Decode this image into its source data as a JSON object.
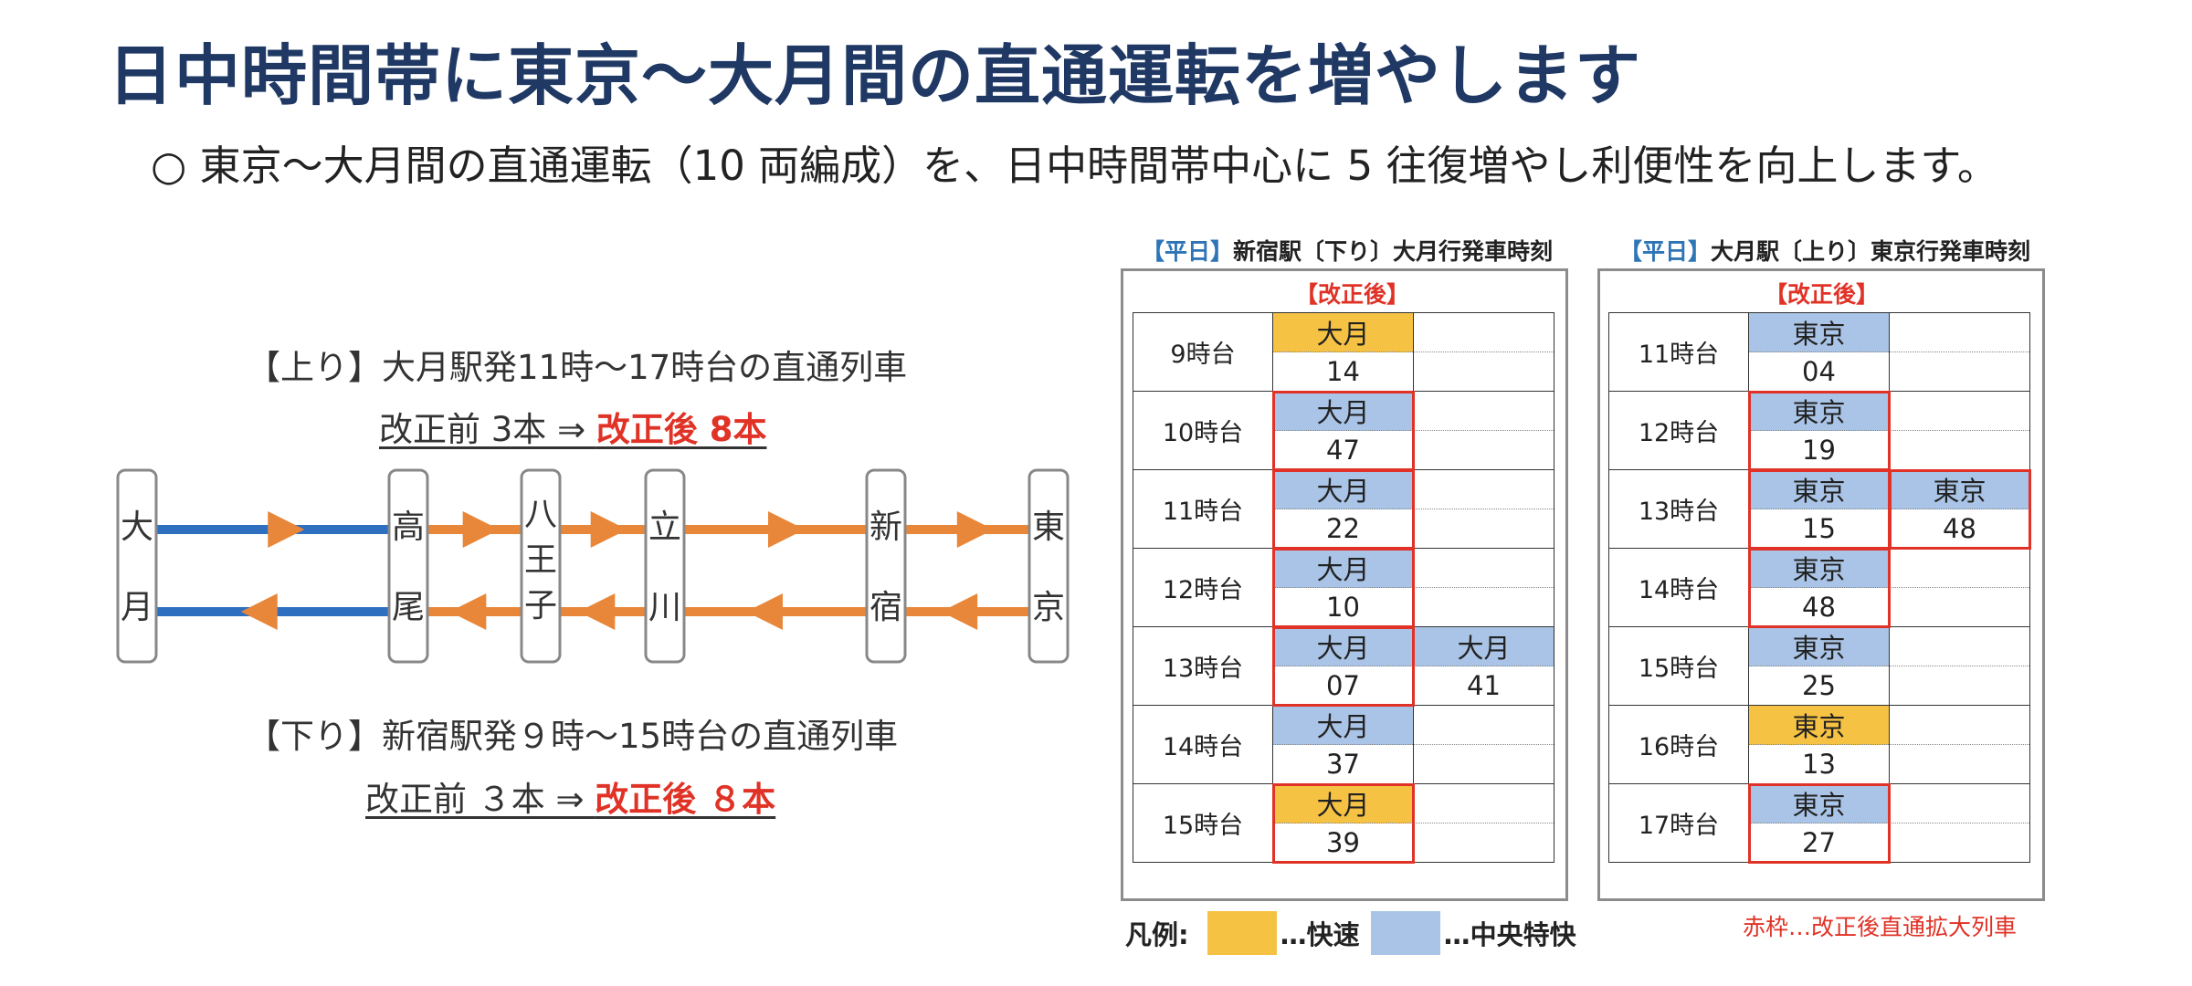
{
  "title": "日中時間帯に東京～大月間の直通運転を増やします",
  "subtitle": "○ 東京～大月間の直通運転（10 両編成）を、日中時間帯中心に 5 往復増やし利便性を向上します。",
  "up": {
    "caption": "【上り】大月駅発11時～17時台の直通列車",
    "before": "改正前 3本 ⇒ ",
    "after": "改正後 8本"
  },
  "down": {
    "caption": "【下り】新宿駅発９時～15時台の直通列車",
    "before": "改正前 ３本 ⇒ ",
    "after": "改正後 ８本"
  },
  "stations": [
    {
      "id": "otsuki",
      "chars": [
        "大",
        "月"
      ]
    },
    {
      "id": "takao",
      "chars": [
        "高",
        "尾"
      ]
    },
    {
      "id": "hachioji",
      "chars": [
        "八",
        "王",
        "子"
      ]
    },
    {
      "id": "tachikawa",
      "chars": [
        "立",
        "川"
      ]
    },
    {
      "id": "shinjuku",
      "chars": [
        "新",
        "宿"
      ]
    },
    {
      "id": "tokyo",
      "chars": [
        "東",
        "京"
      ]
    }
  ],
  "colors": {
    "title": "#1f3864",
    "line_blue": "#2e6fc0",
    "line_orange": "#e8873a",
    "express": "#f6c243",
    "rapid": "#a9c4e6",
    "highlight_red": "#e03226"
  },
  "timetables": [
    {
      "day_label": "【平日】",
      "title": "新宿駅〔下り〕大月行発車時刻",
      "header": "【改正後】",
      "rows": [
        {
          "hour": "9時台",
          "trains": [
            {
              "dest": "大月",
              "minute": "14",
              "type": "express",
              "new": false
            }
          ]
        },
        {
          "hour": "10時台",
          "trains": [
            {
              "dest": "大月",
              "minute": "47",
              "type": "rapid",
              "new": true
            }
          ]
        },
        {
          "hour": "11時台",
          "trains": [
            {
              "dest": "大月",
              "minute": "22",
              "type": "rapid",
              "new": true
            }
          ]
        },
        {
          "hour": "12時台",
          "trains": [
            {
              "dest": "大月",
              "minute": "10",
              "type": "rapid",
              "new": true
            }
          ]
        },
        {
          "hour": "13時台",
          "trains": [
            {
              "dest": "大月",
              "minute": "07",
              "type": "rapid",
              "new": true
            },
            {
              "dest": "大月",
              "minute": "41",
              "type": "rapid",
              "new": false
            }
          ]
        },
        {
          "hour": "14時台",
          "trains": [
            {
              "dest": "大月",
              "minute": "37",
              "type": "rapid",
              "new": false
            }
          ]
        },
        {
          "hour": "15時台",
          "trains": [
            {
              "dest": "大月",
              "minute": "39",
              "type": "express",
              "new": true
            }
          ]
        }
      ]
    },
    {
      "day_label": "【平日】",
      "title": "大月駅〔上り〕東京行発車時刻",
      "header": "【改正後】",
      "rows": [
        {
          "hour": "11時台",
          "trains": [
            {
              "dest": "東京",
              "minute": "04",
              "type": "rapid",
              "new": false
            }
          ]
        },
        {
          "hour": "12時台",
          "trains": [
            {
              "dest": "東京",
              "minute": "19",
              "type": "rapid",
              "new": true
            }
          ]
        },
        {
          "hour": "13時台",
          "trains": [
            {
              "dest": "東京",
              "minute": "15",
              "type": "rapid",
              "new": true
            },
            {
              "dest": "東京",
              "minute": "48",
              "type": "rapid",
              "new": true
            }
          ]
        },
        {
          "hour": "14時台",
          "trains": [
            {
              "dest": "東京",
              "minute": "48",
              "type": "rapid",
              "new": true
            }
          ]
        },
        {
          "hour": "15時台",
          "trains": [
            {
              "dest": "東京",
              "minute": "25",
              "type": "rapid",
              "new": false
            }
          ]
        },
        {
          "hour": "16時台",
          "trains": [
            {
              "dest": "東京",
              "minute": "13",
              "type": "express",
              "new": false
            }
          ]
        },
        {
          "hour": "17時台",
          "trains": [
            {
              "dest": "東京",
              "minute": "27",
              "type": "rapid",
              "new": true
            }
          ]
        }
      ]
    }
  ],
  "legend": {
    "label": "凡例:",
    "express": "…快速",
    "rapid": "…中央特快"
  },
  "note": "赤枠…改正後直通拡大列車"
}
